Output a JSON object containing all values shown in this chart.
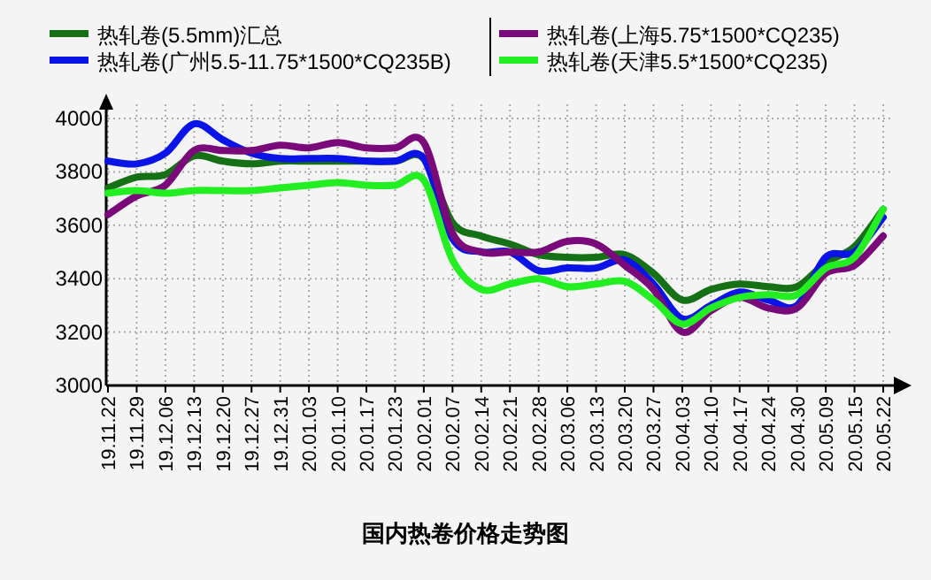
{
  "chart_data": {
    "type": "line",
    "title": "国内热卷价格走势图",
    "categories": [
      "19.11.22",
      "19.11.29",
      "19.12.06",
      "19.12.13",
      "19.12.20",
      "19.12.27",
      "19.12.31",
      "20.01.03",
      "20.01.10",
      "20.01.17",
      "20.01.23",
      "20.02.01",
      "20.02.07",
      "20.02.14",
      "20.02.21",
      "20.02.28",
      "20.03.06",
      "20.03.13",
      "20.03.20",
      "20.03.27",
      "20.04.03",
      "20.04.10",
      "20.04.17",
      "20.04.24",
      "20.04.30",
      "20.05.09",
      "20.05.15",
      "20.05.22"
    ],
    "series": [
      {
        "name": "热轧卷(5.5mm)汇总",
        "color": "#167016",
        "values": [
          3740,
          3780,
          3790,
          3860,
          3840,
          3830,
          3840,
          3840,
          3840,
          3840,
          3840,
          3850,
          3610,
          3560,
          3530,
          3490,
          3480,
          3480,
          3490,
          3420,
          3320,
          3360,
          3380,
          3370,
          3370,
          3460,
          3520,
          3660
        ]
      },
      {
        "name": "热轧卷(广州5.5-11.75*1500*CQ235B)",
        "color": "#0a14e6",
        "values": [
          3840,
          3830,
          3870,
          3980,
          3920,
          3870,
          3850,
          3850,
          3850,
          3840,
          3840,
          3850,
          3550,
          3500,
          3500,
          3430,
          3440,
          3440,
          3470,
          3380,
          3250,
          3300,
          3350,
          3320,
          3300,
          3480,
          3500,
          3630
        ]
      },
      {
        "name": "热轧卷(上海5.75*1500*CQ235)",
        "color": "#7a0a7a",
        "values": [
          3640,
          3710,
          3750,
          3880,
          3880,
          3880,
          3900,
          3890,
          3910,
          3890,
          3890,
          3910,
          3570,
          3500,
          3500,
          3500,
          3540,
          3530,
          3450,
          3360,
          3200,
          3280,
          3330,
          3290,
          3290,
          3420,
          3450,
          3560
        ]
      },
      {
        "name": "热轧卷(天津5.5*1500*CQ235)",
        "color": "#22ee22",
        "values": [
          3720,
          3730,
          3720,
          3730,
          3730,
          3730,
          3740,
          3750,
          3760,
          3750,
          3750,
          3770,
          3470,
          3360,
          3380,
          3400,
          3370,
          3380,
          3390,
          3320,
          3230,
          3290,
          3330,
          3340,
          3340,
          3440,
          3480,
          3660
        ]
      }
    ],
    "ylim": [
      3000,
      4000
    ],
    "yticks": [
      3000,
      3200,
      3400,
      3600,
      3800,
      4000
    ],
    "grid": true,
    "legend": "top"
  }
}
